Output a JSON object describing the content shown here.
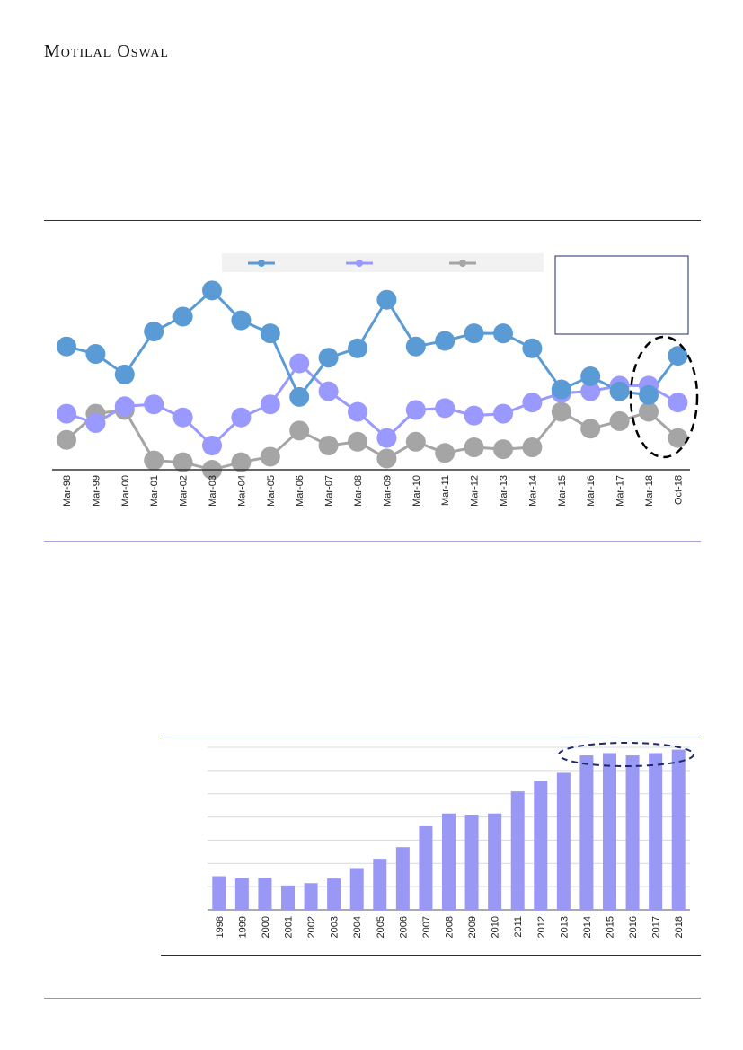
{
  "header": {
    "logo_text": "Motilal Oswal"
  },
  "chart_data": [
    {
      "type": "line",
      "categories": [
        "Mar-98",
        "Mar-99",
        "Mar-00",
        "Mar-01",
        "Mar-02",
        "Mar-03",
        "Mar-04",
        "Mar-05",
        "Mar-06",
        "Mar-07",
        "Mar-08",
        "Mar-09",
        "Mar-10",
        "Mar-11",
        "Mar-12",
        "Mar-13",
        "Mar-14",
        "Mar-15",
        "Mar-16",
        "Mar-17",
        "Mar-18",
        "Oct-18"
      ],
      "series": [
        {
          "color": "#5b9bd5",
          "values": [
            66,
            62,
            51,
            74,
            82,
            96,
            80,
            73,
            39,
            60,
            65,
            91,
            66,
            69,
            73,
            73,
            65,
            43,
            50,
            42,
            40,
            61
          ]
        },
        {
          "color": "#9999ff",
          "values": [
            30,
            25,
            34,
            35,
            28,
            13,
            28,
            35,
            57,
            42,
            31,
            17,
            32,
            33,
            29,
            30,
            36,
            41,
            42,
            45,
            45,
            36
          ]
        },
        {
          "color": "#a5a5a5",
          "values": [
            16,
            30,
            32,
            5,
            4,
            0,
            4,
            7,
            21,
            13,
            15,
            6,
            15,
            9,
            12,
            11,
            12,
            31,
            22,
            26,
            31,
            17
          ]
        }
      ],
      "ylim": [
        0,
        100
      ],
      "legend": "top",
      "grid": false
    },
    {
      "type": "bar",
      "categories": [
        "1998",
        "1999",
        "2000",
        "2001",
        "2002",
        "2003",
        "2004",
        "2005",
        "2006",
        "2007",
        "2008",
        "2009",
        "2010",
        "2011",
        "2012",
        "2013",
        "2014",
        "2015",
        "2016",
        "2017",
        "2018"
      ],
      "values": [
        14.5,
        13.7,
        13.8,
        10.5,
        11.5,
        13.5,
        18,
        22,
        27,
        36,
        41.5,
        41,
        41.5,
        51,
        55.5,
        59,
        66.5,
        67.5,
        66.5,
        67.5,
        69
      ],
      "ylim": [
        0,
        70
      ],
      "color": "#9999f5",
      "grid": true
    }
  ]
}
